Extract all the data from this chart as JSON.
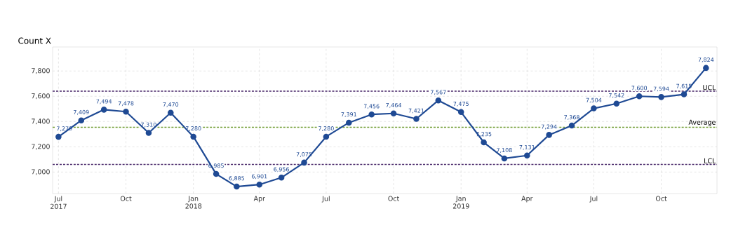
{
  "chart_data": {
    "type": "line",
    "title": "Count X",
    "x": [
      "2017-07",
      "2017-08",
      "2017-09",
      "2017-10",
      "2017-11",
      "2017-12",
      "2018-01",
      "2018-02",
      "2018-03",
      "2018-04",
      "2018-05",
      "2018-06",
      "2018-07",
      "2018-08",
      "2018-09",
      "2018-10",
      "2018-11",
      "2018-12",
      "2019-01",
      "2019-02",
      "2019-03",
      "2019-04",
      "2019-05",
      "2019-06",
      "2019-07",
      "2019-08",
      "2019-09",
      "2019-10",
      "2019-11",
      "2019-12"
    ],
    "values": [
      7279,
      7409,
      7494,
      7478,
      7310,
      7470,
      7280,
      6985,
      6885,
      6901,
      6956,
      7075,
      7280,
      7391,
      7456,
      7464,
      7421,
      7567,
      7475,
      7235,
      7108,
      7131,
      7294,
      7368,
      7504,
      7542,
      7600,
      7594,
      7615,
      7824
    ],
    "value_labels": [
      "7,279",
      "7,409",
      "7,494",
      "7,478",
      "7,310",
      "7,470",
      "7,280",
      "6,985",
      "6,885",
      "6,901",
      "6,956",
      "7,075",
      "7,280",
      "7,391",
      "7,456",
      "7,464",
      "7,421",
      "7,567",
      "7,475",
      "7,235",
      "7,108",
      "7,131",
      "7,294",
      "7,368",
      "7,504",
      "7,542",
      "7,600",
      "7,594",
      "7,615",
      "7,824"
    ],
    "color": "#1f4a94",
    "marker": "circle",
    "line_style": "solid",
    "grid": true,
    "ylim": [
      6830,
      7990
    ],
    "yticks": [
      {
        "value": 7000,
        "label": "7,000"
      },
      {
        "value": 7200,
        "label": "7,200"
      },
      {
        "value": 7400,
        "label": "7,400"
      },
      {
        "value": 7600,
        "label": "7,600"
      },
      {
        "value": 7800,
        "label": "7,800"
      }
    ],
    "xlim": [
      "2017-06-23",
      "2019-12-16"
    ],
    "xticks": [
      {
        "value": "2017-07",
        "label": "Jul 2017"
      },
      {
        "value": "2017-10",
        "label": "Oct"
      },
      {
        "value": "2018-01",
        "label": "Jan 2018"
      },
      {
        "value": "2018-04",
        "label": "Apr"
      },
      {
        "value": "2018-07",
        "label": "Jul"
      },
      {
        "value": "2018-10",
        "label": "Oct"
      },
      {
        "value": "2019-01",
        "label": "Jan 2019"
      },
      {
        "value": "2019-04",
        "label": "Apr"
      },
      {
        "value": "2019-07",
        "label": "Jul"
      },
      {
        "value": "2019-10",
        "label": "Oct"
      }
    ],
    "ref_lines": [
      {
        "axis": "y",
        "value": 7640,
        "label": "UCL",
        "color": "#4b2a6b",
        "line_style": "dashed"
      },
      {
        "axis": "y",
        "value": 7355,
        "label": "Average",
        "color": "#6e9a2f",
        "line_style": "dashed"
      },
      {
        "axis": "y",
        "value": 7060,
        "label": "LCL",
        "color": "#4b2a6b",
        "line_style": "dashed"
      }
    ]
  }
}
